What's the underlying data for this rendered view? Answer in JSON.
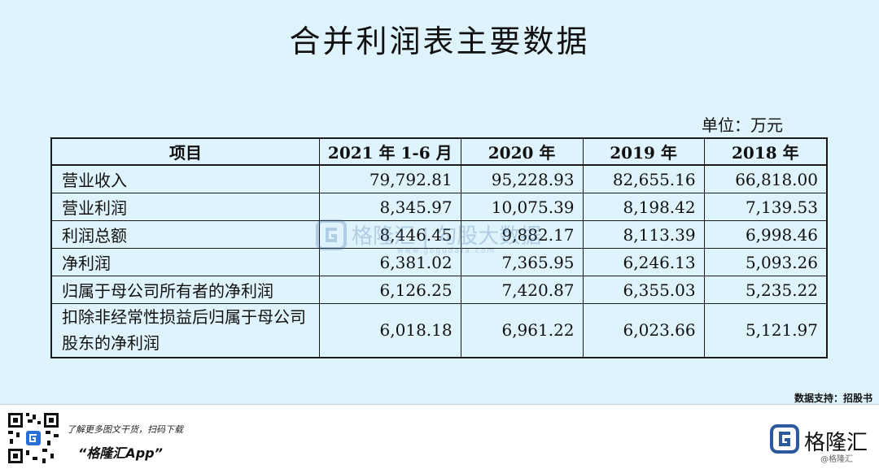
{
  "title": "合并利润表主要数据",
  "unit": "单位：万元",
  "table": {
    "headers": [
      "项目",
      "2021 年 1-6 月",
      "2020 年",
      "2019 年",
      "2018 年"
    ],
    "rows": [
      {
        "label": "营业收入",
        "values": [
          "79,792.81",
          "95,228.93",
          "82,655.16",
          "66,818.00"
        ]
      },
      {
        "label": "营业利润",
        "values": [
          "8,345.97",
          "10,075.39",
          "8,198.42",
          "7,139.53"
        ]
      },
      {
        "label": "利润总额",
        "values": [
          "8,446.45",
          "9,882.17",
          "8,113.39",
          "6,998.46"
        ]
      },
      {
        "label": "净利润",
        "values": [
          "6,381.02",
          "7,365.95",
          "6,246.13",
          "5,093.26"
        ]
      },
      {
        "label": "归属于母公司所有者的净利润",
        "values": [
          "6,126.25",
          "7,420.87",
          "6,355.03",
          "5,235.22"
        ]
      },
      {
        "label": "扣除非经常性损益后归属于母公司股东的净利润",
        "values": [
          "6,018.18",
          "6,961.22",
          "6,023.66",
          "5,121.97"
        ]
      }
    ]
  },
  "watermark": {
    "text": "格隆汇 | 勾股大数据",
    "url": "www.gogudata.com"
  },
  "source": "数据支持：招股书",
  "footer": {
    "line1": "了解更多图文干货，扫码下载",
    "app_name": "“格隆汇App”",
    "logo_text": "格隆汇",
    "logo_sub": "@格隆汇"
  },
  "colors": {
    "background": "#dff3fd",
    "watermark": "#3a6fa6",
    "logo_blue": "#2a5a9c"
  }
}
